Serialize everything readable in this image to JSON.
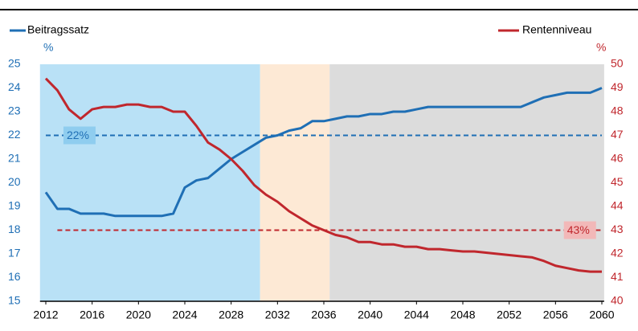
{
  "chart_data": {
    "type": "line",
    "x": [
      2012,
      2013,
      2014,
      2015,
      2016,
      2017,
      2018,
      2019,
      2020,
      2021,
      2022,
      2023,
      2024,
      2025,
      2026,
      2027,
      2028,
      2029,
      2030,
      2031,
      2032,
      2033,
      2034,
      2035,
      2036,
      2037,
      2038,
      2039,
      2040,
      2041,
      2042,
      2043,
      2044,
      2045,
      2046,
      2047,
      2048,
      2049,
      2050,
      2051,
      2052,
      2053,
      2054,
      2055,
      2056,
      2057,
      2058,
      2059,
      2060
    ],
    "series": [
      {
        "name": "Beitragssatz",
        "color": "#1f6fb5",
        "axis": "y",
        "values": [
          19.6,
          18.9,
          18.9,
          18.7,
          18.7,
          18.7,
          18.6,
          18.6,
          18.6,
          18.6,
          18.6,
          18.7,
          19.8,
          20.1,
          20.2,
          20.6,
          21.0,
          21.3,
          21.6,
          21.9,
          22.0,
          22.2,
          22.3,
          22.6,
          22.6,
          22.7,
          22.8,
          22.8,
          22.9,
          22.9,
          23.0,
          23.0,
          23.1,
          23.2,
          23.2,
          23.2,
          23.2,
          23.2,
          23.2,
          23.2,
          23.2,
          23.2,
          23.4,
          23.6,
          23.7,
          23.8,
          23.8,
          23.8,
          24.0
        ]
      },
      {
        "name": "Rentenniveau",
        "color": "#c0272d",
        "axis": "y2",
        "values": [
          49.4,
          48.9,
          48.1,
          47.7,
          48.1,
          48.2,
          48.2,
          48.3,
          48.3,
          48.2,
          48.2,
          48.0,
          48.0,
          47.4,
          46.7,
          46.4,
          46.0,
          45.5,
          44.9,
          44.5,
          44.2,
          43.8,
          43.5,
          43.2,
          43.0,
          42.8,
          42.7,
          42.5,
          42.5,
          42.4,
          42.4,
          42.3,
          42.3,
          42.2,
          42.2,
          42.15,
          42.1,
          42.1,
          42.05,
          42.0,
          41.95,
          41.9,
          41.85,
          41.7,
          41.5,
          41.4,
          41.3,
          41.25,
          41.25
        ]
      }
    ],
    "y_label": "%",
    "y2_label": "%",
    "xlim": [
      2011.5,
      2060.2
    ],
    "xticks": [
      2012,
      2016,
      2020,
      2024,
      2028,
      2032,
      2036,
      2040,
      2044,
      2048,
      2052,
      2056,
      2060
    ],
    "ylim": [
      15,
      25
    ],
    "yticks": [
      15,
      16,
      17,
      18,
      19,
      20,
      21,
      22,
      23,
      24,
      25
    ],
    "y2lim": [
      40,
      50
    ],
    "y2ticks": [
      40,
      41,
      42,
      43,
      44,
      45,
      46,
      47,
      48,
      49,
      50
    ],
    "regions": [
      {
        "from": 2011.5,
        "to": 2030.5,
        "color": "#b9e1f6"
      },
      {
        "from": 2030.5,
        "to": 2036.5,
        "color": "#fde9d5"
      },
      {
        "from": 2036.5,
        "to": 2060.2,
        "color": "#dcdcdc"
      }
    ],
    "reference_lines": [
      {
        "value": 22,
        "axis": "y",
        "label": "22%",
        "from": 2012,
        "to": 2060,
        "color": "#1f6fb5",
        "label_x": 2013.8,
        "label_bg": "#8fcdef"
      },
      {
        "value": 43,
        "axis": "y2",
        "label": "43%",
        "from": 2013,
        "to": 2060,
        "color": "#c0272d",
        "label_x": 2057,
        "label_bg": "#f2b8b8"
      }
    ]
  }
}
